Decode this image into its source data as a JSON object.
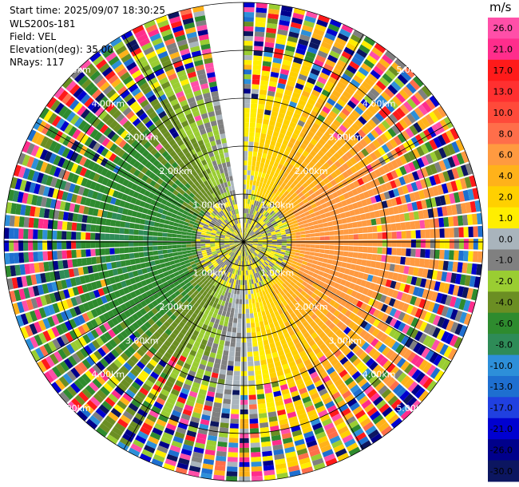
{
  "header": {
    "start_time": "Start time: 2025/09/07 18:30:25",
    "instrument": "WLS200s-181",
    "field": "Field: VEL",
    "elevation": "Elevation(deg): 35.00",
    "nrays": "NRays: 117"
  },
  "colorbar": {
    "unit": "m/s",
    "labels": [
      "26.0",
      "21.0",
      "17.0",
      "13.0",
      "10.0",
      "8.0",
      "6.0",
      "4.0",
      "2.0",
      "1.0",
      "0.0",
      "-1.0",
      "-2.0",
      "-4.0",
      "-6.0",
      "-8.0",
      "-10.0",
      "-13.0",
      "-17.0",
      "-21.0",
      "-26.0",
      "-30.0"
    ],
    "colors": [
      "#ff4fa8",
      "#ff2d8c",
      "#ff1a1a",
      "#ff3030",
      "#ff4a3a",
      "#ff6e4a",
      "#ff9a40",
      "#ffb21a",
      "#ffd000",
      "#ffee00",
      "#a9b4bc",
      "#808080",
      "#9acd32",
      "#6b8e23",
      "#2e8b2e",
      "#2e8b57",
      "#2d8fd9",
      "#1e6fd0",
      "#2040e0",
      "#0000d0",
      "#00008b",
      "#0c1660"
    ]
  },
  "chart_data": {
    "type": "heatmap",
    "projection": "polar PPI",
    "field": "VEL",
    "units": "m/s",
    "range_rings_km": [
      1.0,
      2.0,
      3.0,
      4.0,
      5.0
    ],
    "ring_labels": [
      "1.00km",
      "2.00km",
      "3.00km",
      "4.00km",
      "5.00km"
    ],
    "max_range_km": 5.0,
    "nrays": 117,
    "missing_sector_deg": [
      350,
      360
    ],
    "color_scale_min": -30.0,
    "color_scale_max": 26.0,
    "radial_profile": {
      "near_range_km": [
        0.0,
        1.0
      ],
      "near_range_velocity": "0 to 2 (grey/yellow)",
      "east_velocity_ms": [
        4.0,
        8.0
      ],
      "west_velocity_ms": [
        -6.0,
        -2.0
      ],
      "far_range_km": [
        4.0,
        5.0
      ],
      "far_range": "noisy/mixed"
    }
  }
}
